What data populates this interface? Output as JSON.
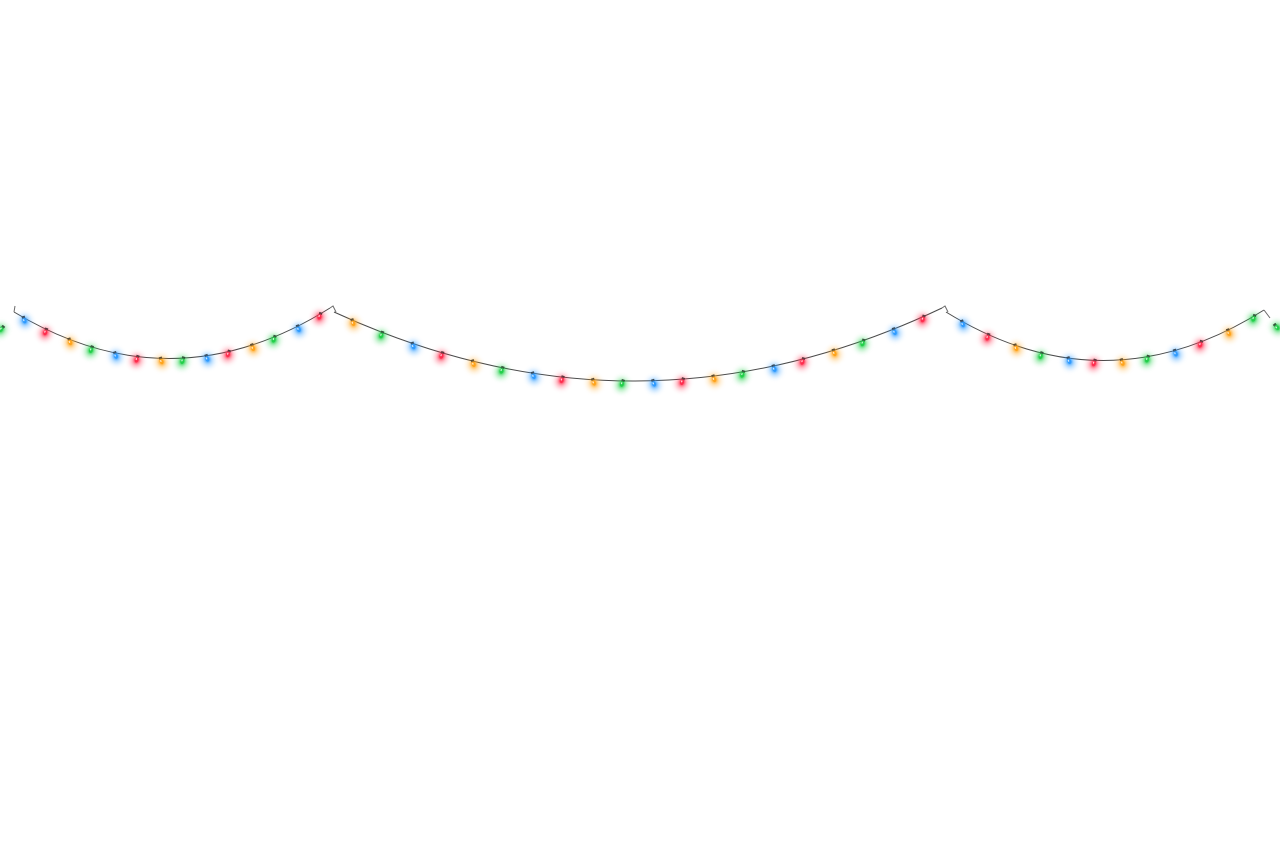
{
  "scene": {
    "subject": "string-of-christmas-lights",
    "background_color": "#ffffff",
    "wire_color": "#4a4a4a",
    "bulb_colors": {
      "red": "#ff2d4e",
      "orange": "#ffa41b",
      "green": "#22d04a",
      "blue": "#2f9bff"
    },
    "strands": [
      {
        "name": "left-strand",
        "bulb_count": 14,
        "bulbs": [
          "blue",
          "red",
          "orange",
          "green",
          "blue",
          "red",
          "orange",
          "green",
          "blue",
          "red",
          "orange",
          "green",
          "blue",
          "red"
        ]
      },
      {
        "name": "middle-strand",
        "bulb_count": 20,
        "bulbs": [
          "orange",
          "green",
          "blue",
          "red",
          "orange",
          "green",
          "blue",
          "red",
          "orange",
          "green",
          "blue",
          "red",
          "orange",
          "green",
          "blue",
          "red",
          "orange",
          "green",
          "blue",
          "red"
        ]
      },
      {
        "name": "right-strand",
        "bulb_count": 12,
        "bulbs": [
          "blue",
          "red",
          "orange",
          "green",
          "blue",
          "red",
          "orange",
          "green",
          "blue",
          "red",
          "orange",
          "green"
        ]
      }
    ],
    "edge_bulbs": [
      "green",
      "green"
    ]
  }
}
